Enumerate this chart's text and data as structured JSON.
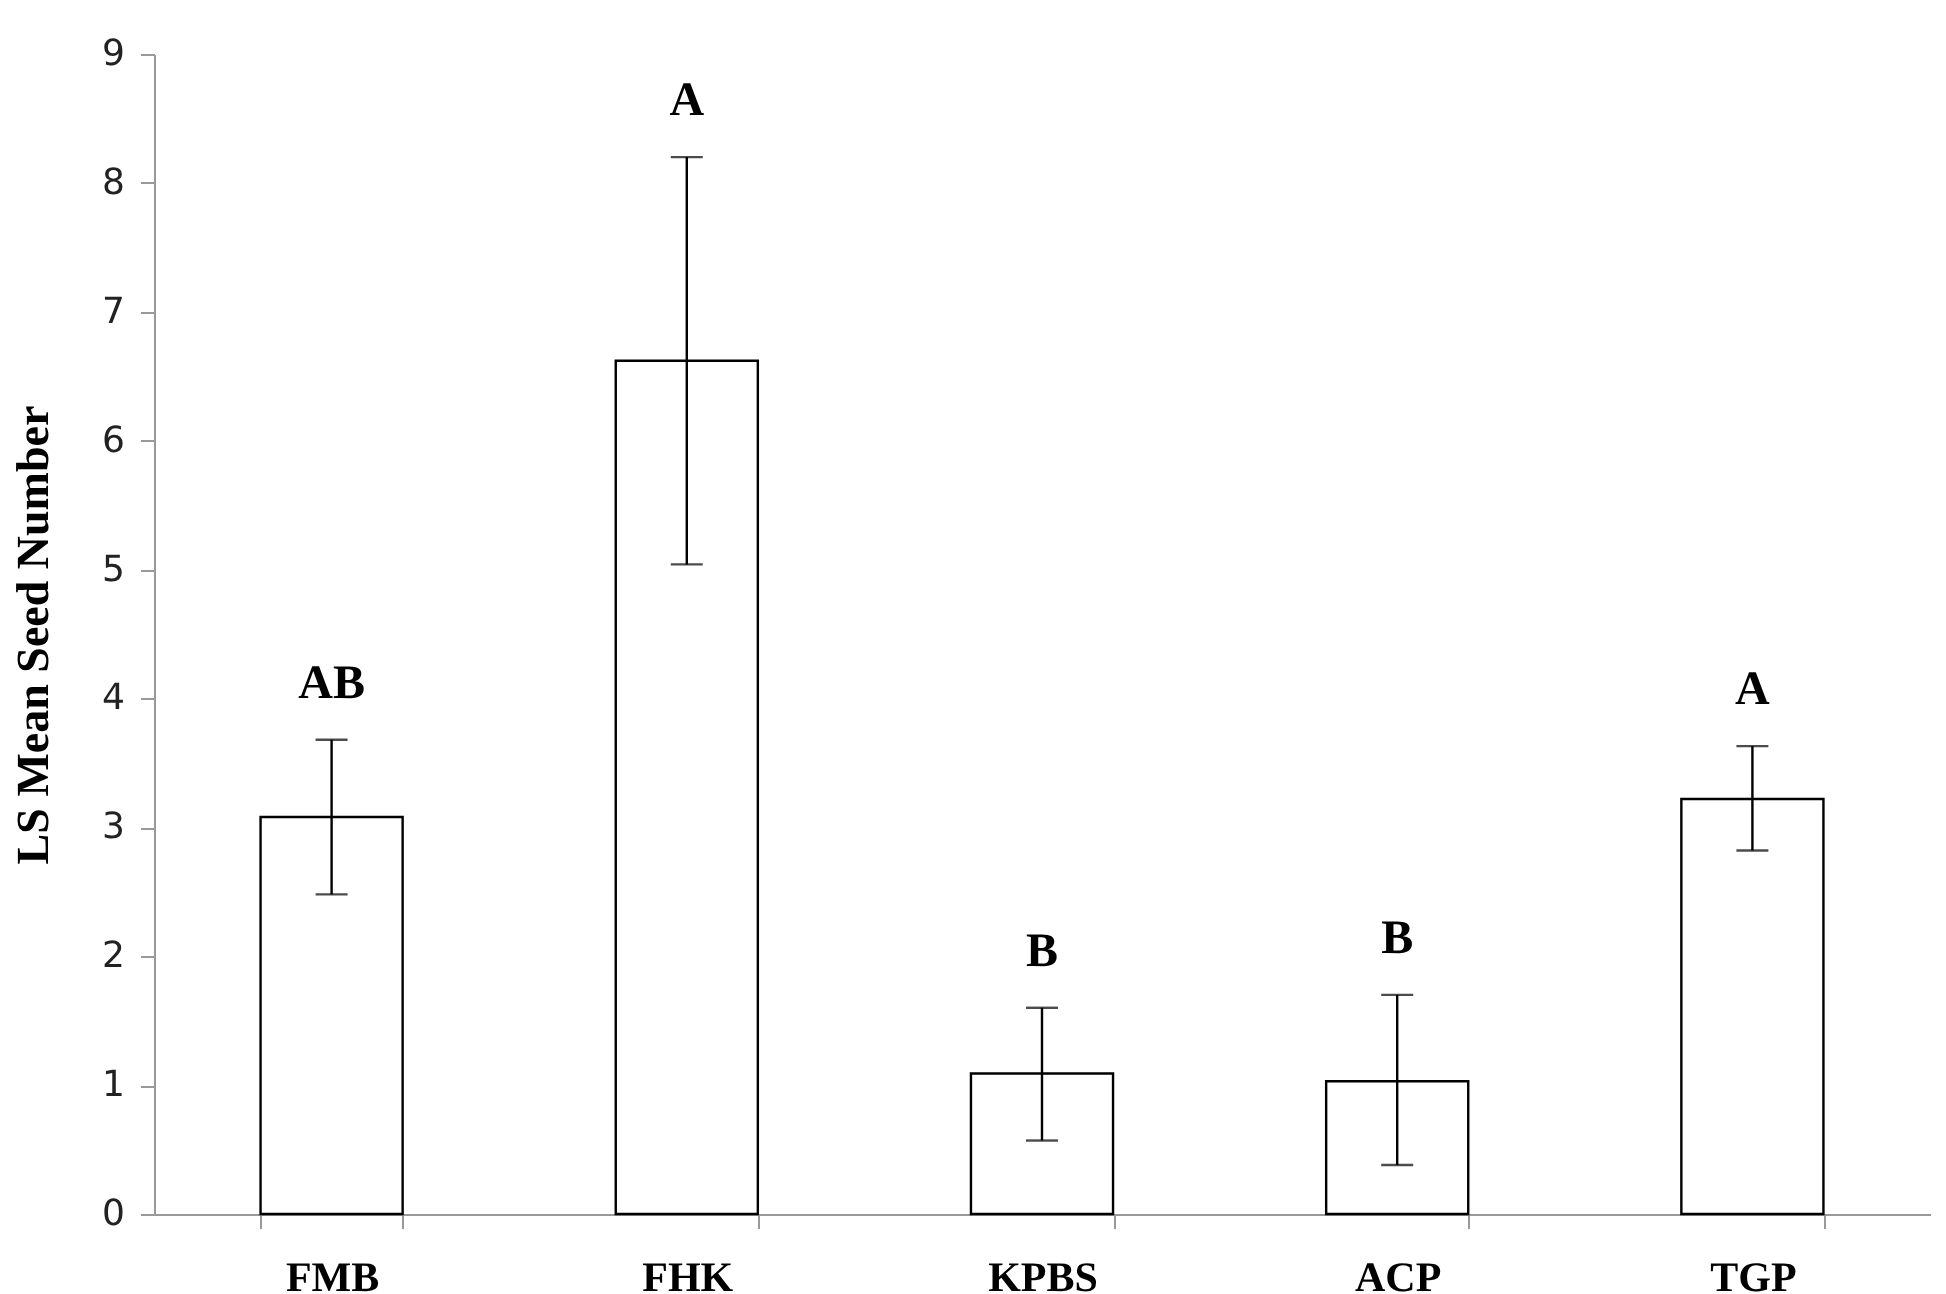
{
  "chart_data": {
    "type": "bar",
    "ylabel": "LS Mean Seed Number",
    "categories": [
      "FMB",
      "FHK",
      "KPBS",
      "ACP",
      "TGP"
    ],
    "values": [
      3.08,
      6.62,
      1.09,
      1.03,
      3.22
    ],
    "errors": [
      [
        2.48,
        3.68
      ],
      [
        5.04,
        8.2
      ],
      [
        0.57,
        1.6
      ],
      [
        0.38,
        1.7
      ],
      [
        2.82,
        3.63
      ]
    ],
    "color": "#ffffff",
    "ylim": [
      0,
      9
    ],
    "yticks": [
      0,
      1,
      2,
      3,
      4,
      5,
      6,
      7,
      8,
      9
    ],
    "grid": false,
    "annotations": [
      "AB",
      "A",
      "B",
      "B",
      "A"
    ]
  }
}
